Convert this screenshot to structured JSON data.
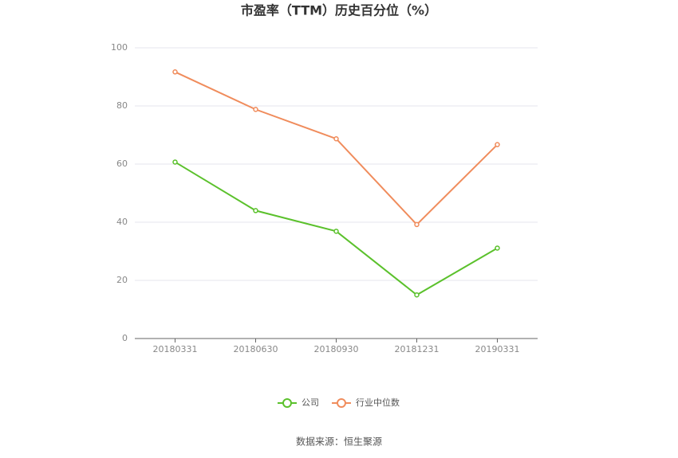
{
  "chart_data": {
    "type": "line",
    "title": "市盈率（TTM）历史百分位（%）",
    "categories": [
      "20180331",
      "20180630",
      "20180930",
      "20181231",
      "20190331"
    ],
    "series": [
      {
        "name": "公司",
        "color": "#5bc12c",
        "values": [
          60.7,
          44.0,
          36.9,
          15.0,
          31.1
        ]
      },
      {
        "name": "行业中位数",
        "color": "#f08c5c",
        "values": [
          91.7,
          78.8,
          68.7,
          39.2,
          66.7
        ]
      }
    ],
    "ylim": [
      0,
      100
    ],
    "yticks": [
      0,
      20,
      40,
      60,
      80,
      100
    ],
    "grid": true,
    "source": "数据来源：恒生聚源"
  }
}
